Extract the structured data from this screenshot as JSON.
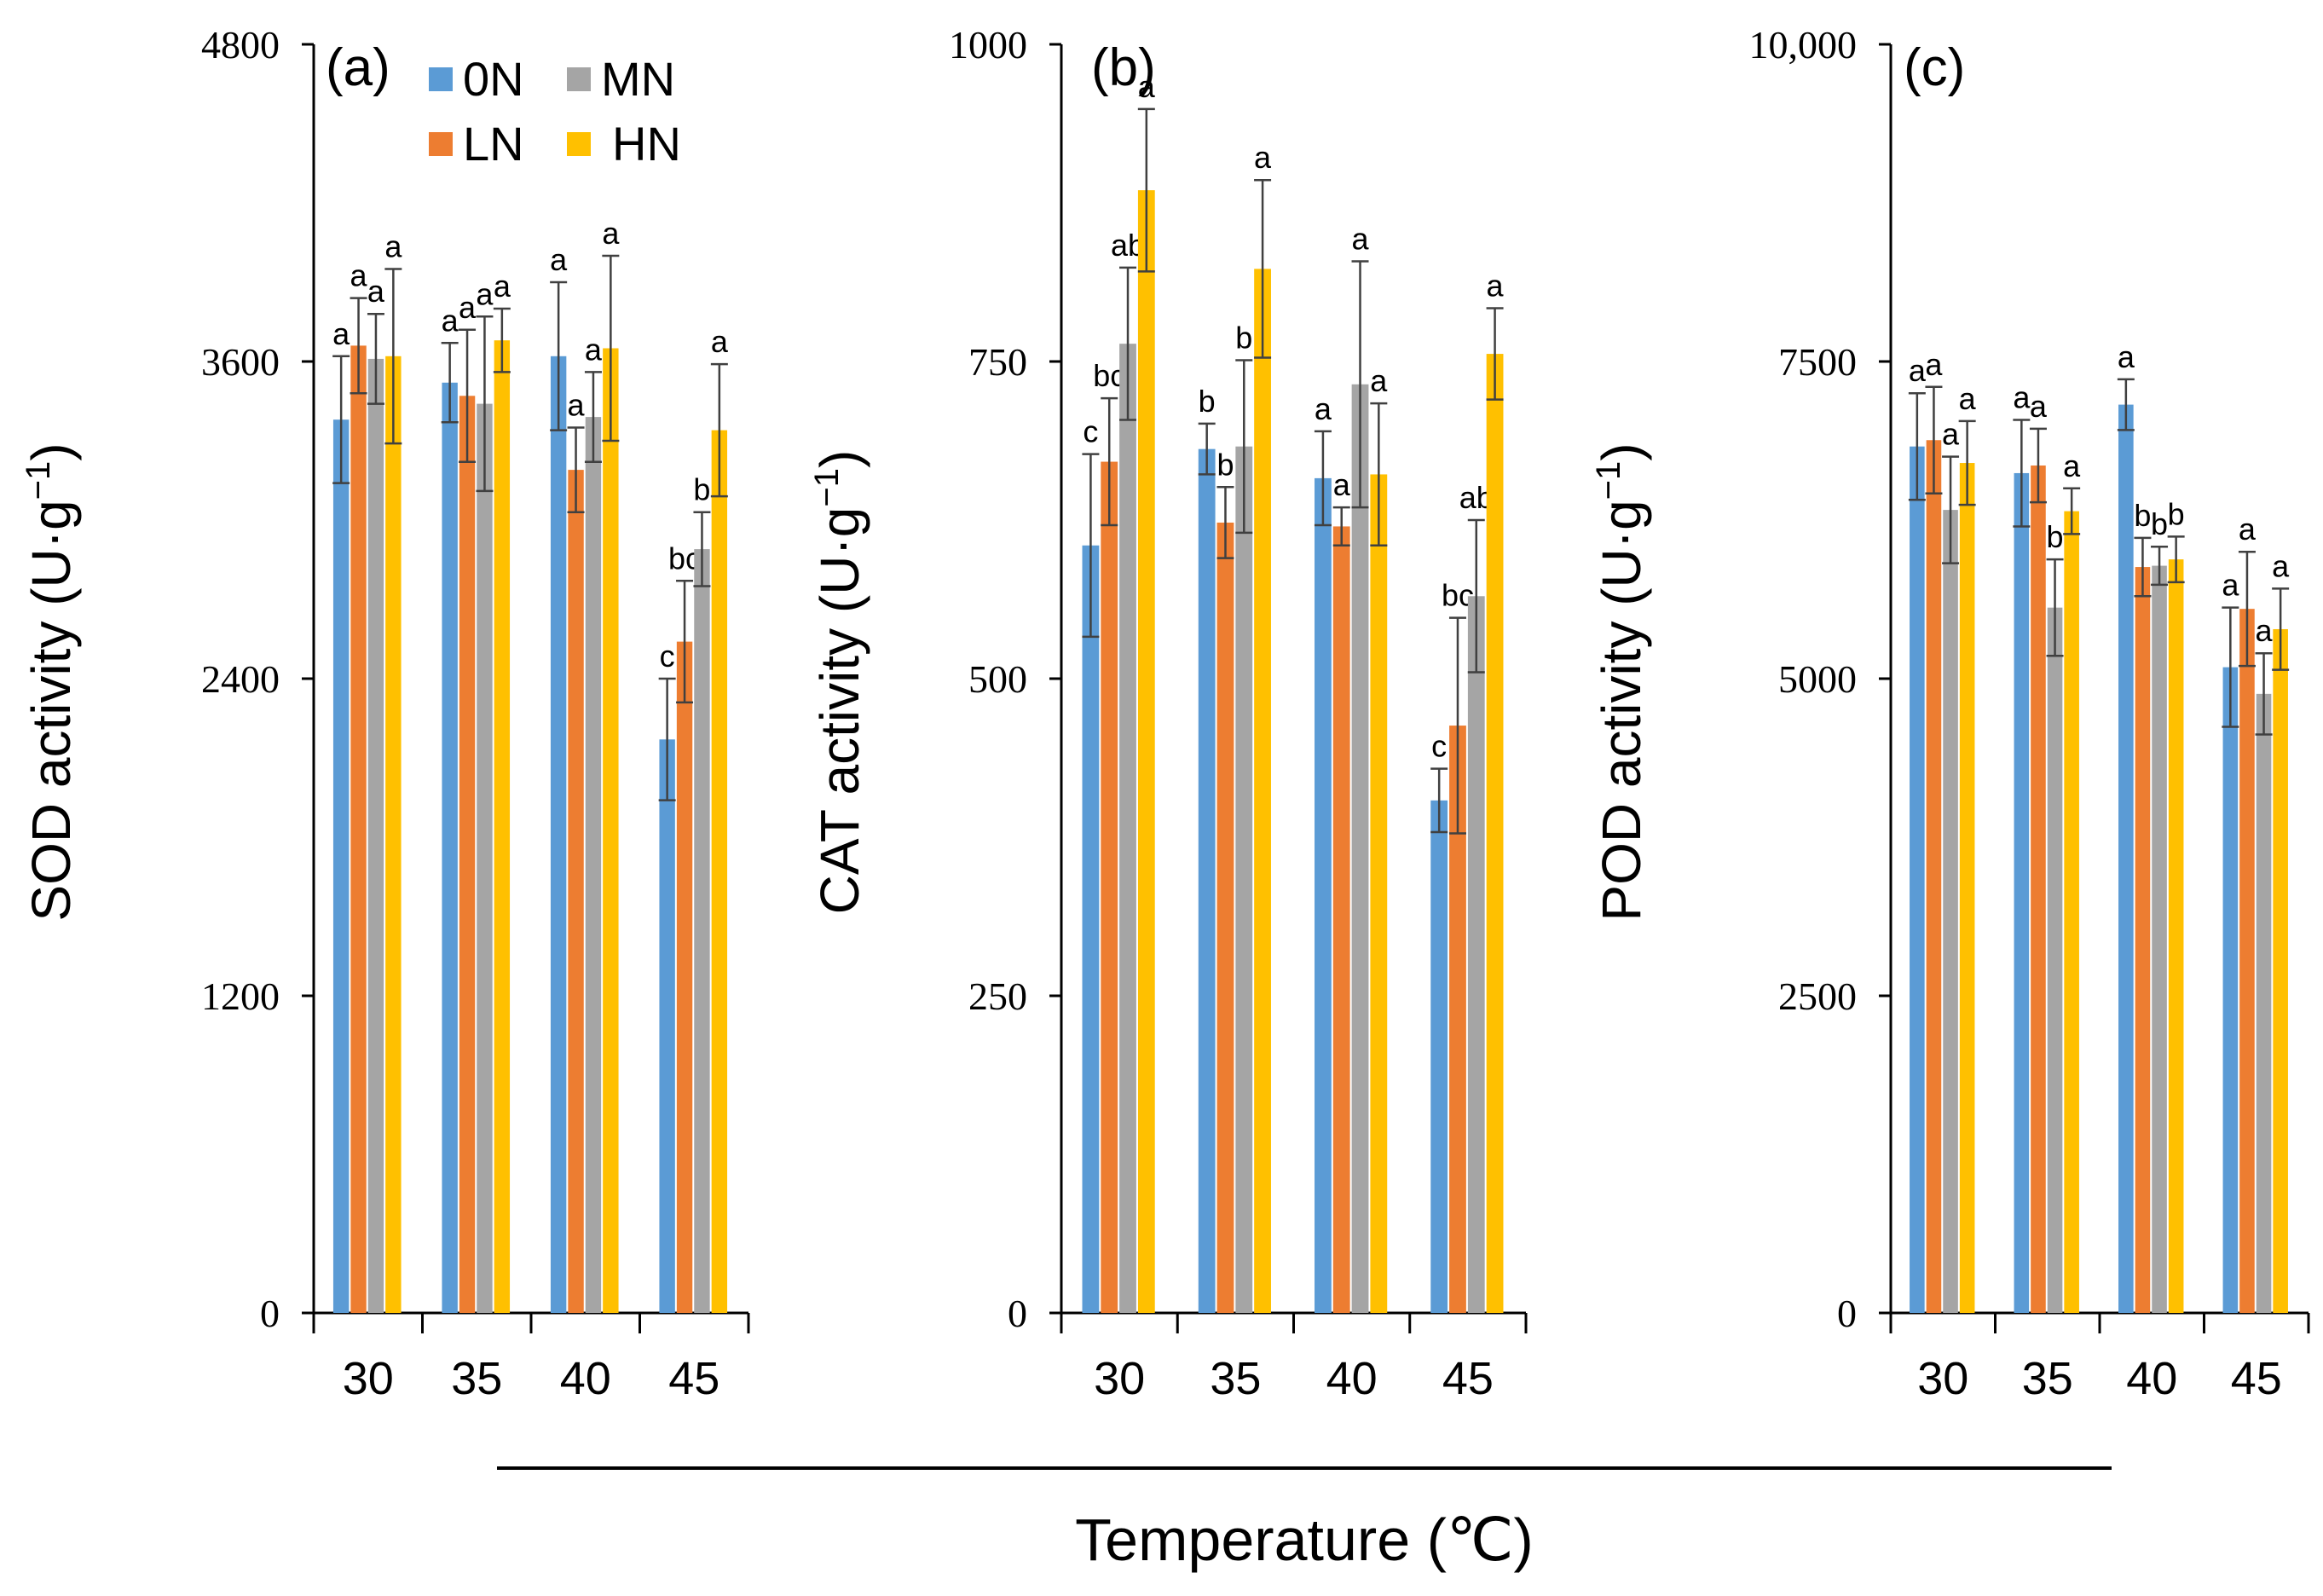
{
  "colors": {
    "0N": "#5B9BD5",
    "LN": "#ED7D31",
    "MN": "#A5A5A5",
    "HN": "#FFC000",
    "axis": "#000000",
    "errorbar": "#404040"
  },
  "legend": {
    "entries": [
      "0N",
      "MN",
      "LN",
      "HN"
    ]
  },
  "x_axis_title": "Temperature (℃)",
  "chart_data": [
    {
      "panel": "(a)",
      "type": "bar",
      "ylabel": "SOD activity (U·g⁻¹)",
      "ylabel_base": "SOD activity (U·g",
      "ylabel_exp": "−1",
      "ylabel_close": ")",
      "ylim": [
        0,
        4800
      ],
      "yticks": [
        0,
        1200,
        2400,
        3600,
        4800
      ],
      "ytick_labels": [
        "0",
        "1200",
        "2400",
        "3600",
        "4800"
      ],
      "categories": [
        "30",
        "35",
        "40",
        "45"
      ],
      "series": [
        {
          "name": "0N",
          "values": [
            3380,
            3520,
            3620,
            2170
          ],
          "errors": [
            240,
            150,
            280,
            230
          ],
          "letters": [
            "a",
            "a",
            "a",
            "c"
          ]
        },
        {
          "name": "LN",
          "values": [
            3660,
            3470,
            3190,
            2540
          ],
          "errors": [
            180,
            250,
            160,
            230
          ],
          "letters": [
            "a",
            "a",
            "a",
            "bc"
          ]
        },
        {
          "name": "MN",
          "values": [
            3610,
            3440,
            3390,
            2890
          ],
          "errors": [
            170,
            330,
            170,
            140
          ],
          "letters": [
            "a",
            "a",
            "a",
            "b"
          ]
        },
        {
          "name": "HN",
          "values": [
            3620,
            3680,
            3650,
            3340
          ],
          "errors": [
            330,
            120,
            350,
            250
          ],
          "letters": [
            "a",
            "a",
            "a",
            "a"
          ]
        }
      ]
    },
    {
      "panel": "(b)",
      "type": "bar",
      "ylabel": "CAT activity (U·g⁻¹)",
      "ylabel_base": "CAT activity (U·g",
      "ylabel_exp": "−1",
      "ylabel_close": ")",
      "ylim": [
        0,
        1000
      ],
      "yticks": [
        0,
        250,
        500,
        750,
        1000
      ],
      "ytick_labels": [
        "0",
        "250",
        "500",
        "750",
        "1000"
      ],
      "categories": [
        "30",
        "35",
        "40",
        "45"
      ],
      "series": [
        {
          "name": "0N",
          "values": [
            605,
            681,
            658,
            404
          ],
          "errors": [
            72,
            20,
            37,
            25
          ],
          "letters": [
            "c",
            "b",
            "a",
            "c"
          ]
        },
        {
          "name": "LN",
          "values": [
            671,
            623,
            620,
            463
          ],
          "errors": [
            50,
            28,
            15,
            85
          ],
          "letters": [
            "bc",
            "b",
            "a",
            "bc"
          ]
        },
        {
          "name": "MN",
          "values": [
            764,
            683,
            732,
            565
          ],
          "errors": [
            60,
            68,
            97,
            60
          ],
          "letters": [
            "ab",
            "b",
            "a",
            "ab"
          ]
        },
        {
          "name": "HN",
          "values": [
            885,
            823,
            661,
            756
          ],
          "errors": [
            64,
            70,
            56,
            36
          ],
          "letters": [
            "a",
            "a",
            "a",
            "a"
          ]
        }
      ]
    },
    {
      "panel": "(c)",
      "type": "bar",
      "ylabel": "POD activity (U·g⁻¹)",
      "ylabel_base": "POD activity (U·g",
      "ylabel_exp": "−1",
      "ylabel_close": ")",
      "ylim": [
        0,
        10000
      ],
      "yticks": [
        0,
        2500,
        5000,
        7500,
        10000
      ],
      "ytick_labels": [
        "0",
        "2500",
        "5000",
        "7500",
        "10,000"
      ],
      "categories": [
        "30",
        "35",
        "40",
        "45"
      ],
      "series": [
        {
          "name": "0N",
          "values": [
            6830,
            6620,
            7160,
            5090
          ],
          "errors": [
            420,
            420,
            200,
            470
          ],
          "letters": [
            "a",
            "a",
            "a",
            "a"
          ]
        },
        {
          "name": "LN",
          "values": [
            6880,
            6680,
            5880,
            5550
          ],
          "errors": [
            420,
            290,
            230,
            450
          ],
          "letters": [
            "a",
            "a",
            "b",
            "a"
          ]
        },
        {
          "name": "MN",
          "values": [
            6330,
            5560,
            5890,
            4880
          ],
          "errors": [
            420,
            380,
            150,
            320
          ],
          "letters": [
            "a",
            "b",
            "b",
            "a"
          ]
        },
        {
          "name": "HN",
          "values": [
            6700,
            6320,
            5940,
            5390
          ],
          "errors": [
            330,
            180,
            180,
            320
          ],
          "letters": [
            "a",
            "a",
            "b",
            "a"
          ]
        }
      ]
    }
  ]
}
